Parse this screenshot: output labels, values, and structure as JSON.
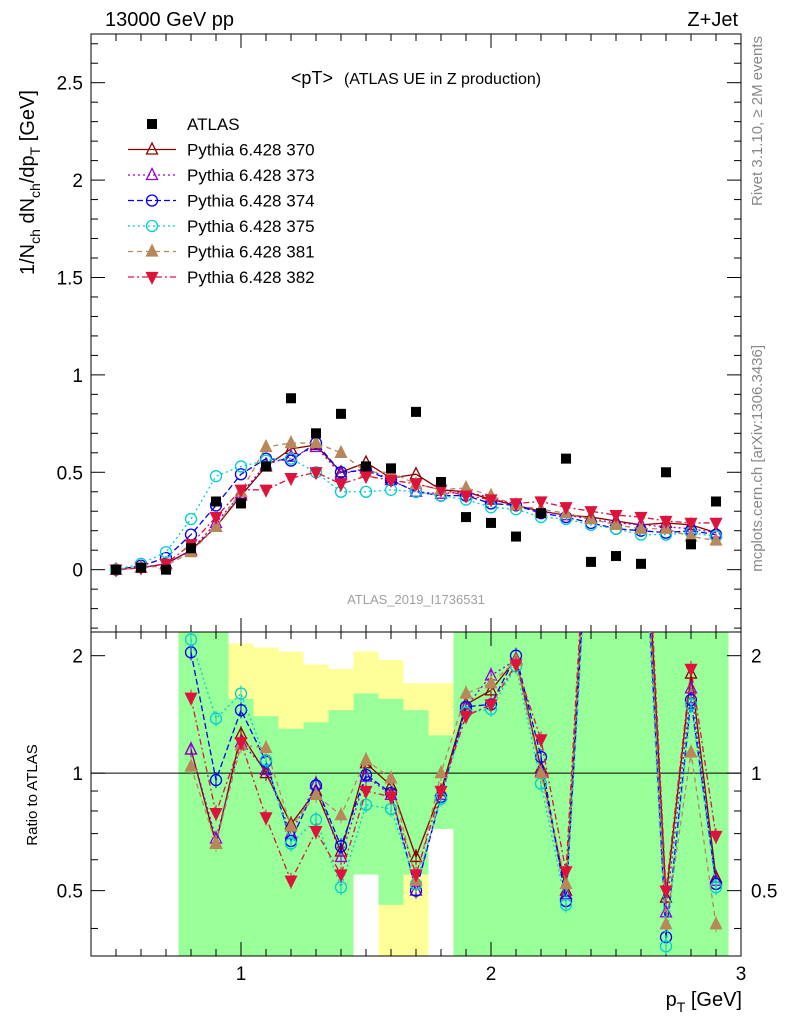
{
  "header": {
    "left": "13000 GeV pp",
    "right": "Z+Jet"
  },
  "side_labels": {
    "rivet": "Rivet 3.1.10, ≥ 2M events",
    "mcplots": "mcplots.cern.ch [arXiv:1306.3436]"
  },
  "chart_data": {
    "type": "line",
    "title": "<pT>",
    "subtitle": "(ATLAS UE in Z production)",
    "watermark": "ATLAS_2019_I1736531",
    "xlabel": "p_T [GeV]",
    "ylabel": "1/N_ch dN_ch/dp_T [GeV]",
    "ratio_ylabel": "Ratio to ATLAS",
    "xlim": [
      0.4,
      3.0
    ],
    "ylim": [
      -0.32,
      2.75
    ],
    "ratio_ylim": [
      0.34,
      2.3
    ],
    "x_ticks": [
      "1",
      "2",
      "3"
    ],
    "y_ticks": [
      "0",
      "0.5",
      "1",
      "1.5",
      "2",
      "2.5"
    ],
    "ratio_ticks": [
      "0.5",
      "1",
      "2"
    ],
    "legend_position": "top-left",
    "x": [
      0.5,
      0.6,
      0.7,
      0.8,
      0.9,
      1.0,
      1.1,
      1.2,
      1.3,
      1.4,
      1.5,
      1.6,
      1.7,
      1.8,
      1.9,
      2.0,
      2.1,
      2.2,
      2.3,
      2.4,
      2.5,
      2.6,
      2.7,
      2.8,
      2.9
    ],
    "data": {
      "name": "ATLAS",
      "values": [
        0.0,
        0.01,
        0.0,
        0.11,
        0.35,
        0.34,
        0.53,
        0.88,
        0.7,
        0.8,
        0.53,
        0.52,
        0.81,
        0.45,
        0.27,
        0.24,
        0.17,
        0.29,
        0.57,
        0.04,
        0.07,
        0.03,
        0.5,
        0.13,
        0.35
      ]
    },
    "series": [
      {
        "name": "Pythia 6.428 370",
        "color": "#8b0000",
        "dash": "",
        "marker": "tri-up-open",
        "values": [
          0.0,
          0.01,
          0.03,
          0.1,
          0.22,
          0.38,
          0.53,
          0.62,
          0.64,
          0.5,
          0.55,
          0.47,
          0.49,
          0.41,
          0.4,
          0.36,
          0.33,
          0.3,
          0.28,
          0.27,
          0.25,
          0.23,
          0.24,
          0.23,
          0.19
        ],
        "ratio": [
          null,
          null,
          null,
          1.15,
          0.66,
          1.26,
          1.0,
          0.74,
          0.9,
          0.63,
          1.06,
          0.93,
          0.61,
          0.9,
          1.5,
          1.63,
          1.96,
          1.03,
          0.5,
          7.0,
          5.0,
          8.0,
          0.48,
          1.8,
          0.54
        ]
      },
      {
        "name": "Pythia 6.428 373",
        "color": "#9400d3",
        "dash": "2,3",
        "marker": "tri-up-open",
        "values": [
          0.0,
          0.01,
          0.03,
          0.1,
          0.24,
          0.39,
          0.54,
          0.58,
          0.63,
          0.49,
          0.52,
          0.46,
          0.4,
          0.39,
          0.4,
          0.37,
          0.33,
          0.3,
          0.28,
          0.26,
          0.24,
          0.23,
          0.22,
          0.21,
          0.19
        ],
        "ratio": [
          null,
          null,
          null,
          1.15,
          0.68,
          1.2,
          1.02,
          0.7,
          0.94,
          0.61,
          0.98,
          0.88,
          0.5,
          0.88,
          1.48,
          1.78,
          1.95,
          1.01,
          0.49,
          6.5,
          4.8,
          7.6,
          0.44,
          1.65,
          0.53
        ]
      },
      {
        "name": "Pythia 6.428 374",
        "color": "#0000ee",
        "dash": "6,3",
        "marker": "circle-open",
        "values": [
          0.0,
          0.02,
          0.06,
          0.18,
          0.33,
          0.49,
          0.57,
          0.56,
          0.65,
          0.5,
          0.51,
          0.46,
          0.4,
          0.38,
          0.38,
          0.34,
          0.33,
          0.29,
          0.27,
          0.24,
          0.21,
          0.2,
          0.19,
          0.2,
          0.18
        ],
        "ratio": [
          null,
          null,
          null,
          2.04,
          0.96,
          1.45,
          1.07,
          0.67,
          0.93,
          0.65,
          0.99,
          0.89,
          0.5,
          0.87,
          1.48,
          1.5,
          2.0,
          1.1,
          0.47,
          6.0,
          3.2,
          6.7,
          0.38,
          1.54,
          0.52
        ]
      },
      {
        "name": "Pythia 6.428 375",
        "color": "#00ced1",
        "dash": "2,3",
        "marker": "circle-open",
        "values": [
          0.0,
          0.03,
          0.09,
          0.26,
          0.48,
          0.53,
          0.56,
          0.57,
          0.5,
          0.4,
          0.4,
          0.41,
          0.4,
          0.38,
          0.36,
          0.32,
          0.31,
          0.27,
          0.26,
          0.23,
          0.21,
          0.18,
          0.18,
          0.19,
          0.17
        ],
        "ratio": [
          null,
          null,
          null,
          2.2,
          1.38,
          1.6,
          1.08,
          0.66,
          0.76,
          0.51,
          0.83,
          0.81,
          0.52,
          0.86,
          1.43,
          1.46,
          1.88,
          0.94,
          0.46,
          5.5,
          3.0,
          6.0,
          0.36,
          1.5,
          0.51
        ]
      },
      {
        "name": "Pythia 6.428 381",
        "color": "#b8875a",
        "dash": "5,4",
        "marker": "tri-up-filled",
        "values": [
          0.0,
          0.01,
          0.02,
          0.09,
          0.22,
          0.4,
          0.63,
          0.65,
          0.65,
          0.6,
          0.5,
          0.5,
          0.44,
          0.41,
          0.42,
          0.38,
          0.33,
          0.31,
          0.29,
          0.26,
          0.23,
          0.21,
          0.21,
          0.17,
          0.15
        ],
        "ratio": [
          null,
          null,
          null,
          1.04,
          0.66,
          1.18,
          1.16,
          0.73,
          0.88,
          0.78,
          1.08,
          0.97,
          0.53,
          1.0,
          1.6,
          1.7,
          1.94,
          1.0,
          0.52,
          6.8,
          4.5,
          7.0,
          0.41,
          1.13,
          0.41
        ]
      },
      {
        "name": "Pythia 6.428 382",
        "color": "#dc143c",
        "dash": "6,3,2,3",
        "marker": "tri-down-filled",
        "values": [
          0.0,
          0.01,
          0.03,
          0.13,
          0.27,
          0.41,
          0.41,
          0.47,
          0.5,
          0.44,
          0.48,
          0.46,
          0.44,
          0.41,
          0.38,
          0.36,
          0.34,
          0.35,
          0.32,
          0.3,
          0.28,
          0.27,
          0.25,
          0.24,
          0.24
        ],
        "ratio": [
          null,
          null,
          null,
          1.56,
          0.79,
          1.2,
          0.77,
          0.53,
          0.71,
          0.55,
          0.9,
          0.87,
          0.55,
          0.9,
          1.4,
          1.5,
          1.9,
          1.22,
          0.56,
          7.5,
          4.0,
          9.0,
          0.5,
          1.85,
          0.69
        ]
      }
    ],
    "bands": {
      "x_edges": [
        0.75,
        0.85,
        0.95,
        1.05,
        1.15,
        1.25,
        1.35,
        1.45,
        1.55,
        1.65,
        1.75,
        1.85,
        1.95,
        2.05,
        2.15,
        2.25,
        2.35,
        2.45,
        2.55,
        2.65,
        2.75,
        2.85,
        2.95
      ],
      "green_lo": [
        0.34,
        0.34,
        0.34,
        0.34,
        0.34,
        0.34,
        0.34,
        0.55,
        0.46,
        0.55,
        0.72,
        0.34,
        0.34,
        0.34,
        0.34,
        0.34,
        0.34,
        0.34,
        0.34,
        0.34,
        0.34,
        0.34
      ],
      "green_hi": [
        2.3,
        2.3,
        1.55,
        1.4,
        1.3,
        1.35,
        1.45,
        1.6,
        1.55,
        1.45,
        1.25,
        2.3,
        2.3,
        2.3,
        2.3,
        2.3,
        2.3,
        2.3,
        2.3,
        2.3,
        2.3,
        2.3
      ],
      "yellow_lo": [
        0.34,
        0.34,
        0.34,
        0.34,
        0.34,
        0.4,
        0.62,
        0.62,
        0.34,
        0.34,
        0.72,
        0.34,
        0.34,
        0.34,
        0.34,
        0.34,
        0.34,
        0.34,
        0.34,
        0.34,
        0.45,
        0.34
      ],
      "yellow_hi": [
        2.3,
        2.3,
        2.15,
        2.1,
        2.05,
        1.9,
        1.85,
        2.05,
        1.95,
        1.7,
        1.7,
        2.3,
        2.3,
        2.3,
        2.3,
        2.3,
        2.3,
        2.3,
        2.3,
        2.3,
        2.3,
        2.3
      ]
    }
  }
}
